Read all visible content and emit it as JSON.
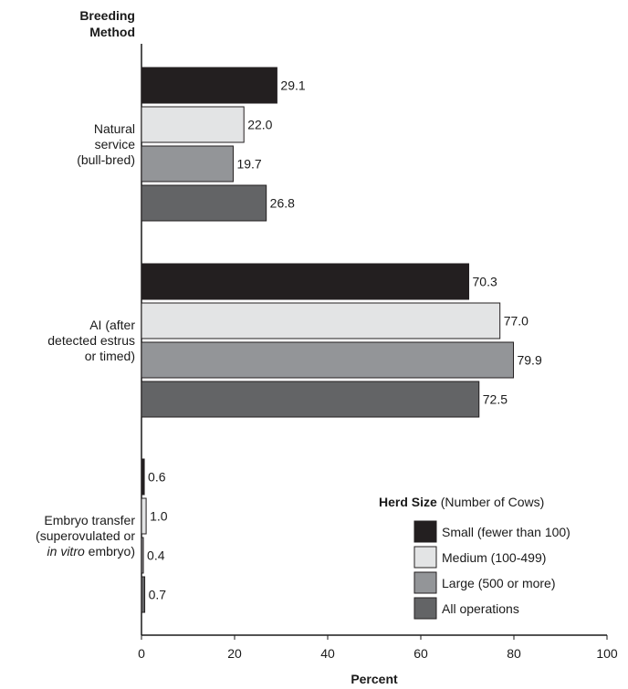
{
  "chart_data": {
    "type": "bar",
    "orientation": "horizontal",
    "ylabel_lines": [
      "Breeding",
      "Method"
    ],
    "xlabel": "Percent",
    "xlim": [
      0,
      100
    ],
    "xticks": [
      "0",
      "20",
      "40",
      "60",
      "80",
      "100"
    ],
    "categories": [
      {
        "name": "Natural service (bull-bred)",
        "lines": [
          "Natural",
          "service",
          "(bull-bred)"
        ]
      },
      {
        "name": "AI (after detected estrus or timed)",
        "lines": [
          "AI (after",
          "detected estrus",
          "or timed)"
        ]
      },
      {
        "name": "Embryo transfer (superovulated or in vitro embryo)",
        "lines": [
          "Embryo transfer",
          "(superovulated or",
          "in vitro embryo)"
        ]
      }
    ],
    "series": [
      {
        "name": "Small (fewer than 100)",
        "color": "#231f20",
        "values": [
          29.1,
          70.3,
          0.6
        ],
        "labels": [
          "29.1",
          "70.3",
          "0.6"
        ]
      },
      {
        "name": "Medium (100-499)",
        "color": "#e3e4e5",
        "values": [
          22.0,
          77.0,
          1.0
        ],
        "labels": [
          "22.0",
          "77.0",
          "1.0"
        ]
      },
      {
        "name": "Large (500 or more)",
        "color": "#939598",
        "values": [
          19.7,
          79.9,
          0.4
        ],
        "labels": [
          "19.7",
          "79.9",
          "0.4"
        ]
      },
      {
        "name": "All operations",
        "color": "#636466",
        "values": [
          26.8,
          72.5,
          0.7
        ],
        "labels": [
          "26.8",
          "72.5",
          "0.7"
        ]
      }
    ],
    "legend": {
      "title_bold": "Herd Size",
      "title_rest": "(Number of Cows)",
      "placement": "bottom-right"
    }
  }
}
